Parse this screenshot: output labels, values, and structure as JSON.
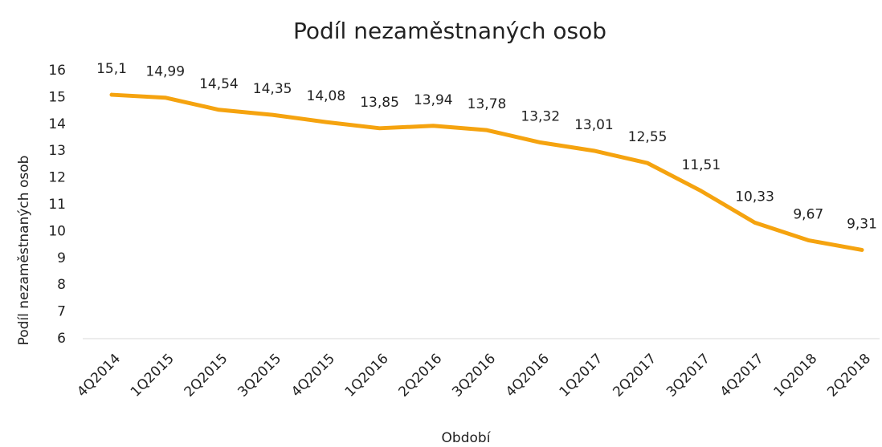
{
  "chart_data": {
    "type": "line",
    "title": "Podíl nezaměstnaných osob",
    "x_label": "Období",
    "y_label": "Podíl nezaměstnaných osob",
    "categories": [
      "4Q2014",
      "1Q2015",
      "2Q2015",
      "3Q2015",
      "4Q2015",
      "1Q2016",
      "2Q2016",
      "3Q2016",
      "4Q2016",
      "1Q2017",
      "2Q2017",
      "3Q2017",
      "4Q2017",
      "1Q2018",
      "2Q2018"
    ],
    "series": [
      {
        "name": "Podíl nezaměstnaných osob",
        "color": "#f5a30f",
        "values": [
          15.1,
          14.99,
          14.54,
          14.35,
          14.08,
          13.85,
          13.94,
          13.78,
          13.32,
          13.01,
          12.55,
          11.51,
          10.33,
          9.67,
          9.31
        ],
        "value_labels": [
          "15,1",
          "14,99",
          "14,54",
          "14,35",
          "14,08",
          "13,85",
          "13,94",
          "13,78",
          "13,32",
          "13,01",
          "12,55",
          "11,51",
          "10,33",
          "9,67",
          "9,31"
        ]
      }
    ],
    "ylim": [
      6,
      16
    ],
    "yticks": [
      6,
      7,
      8,
      9,
      10,
      11,
      12,
      13,
      14,
      15,
      16
    ],
    "grid": false
  }
}
